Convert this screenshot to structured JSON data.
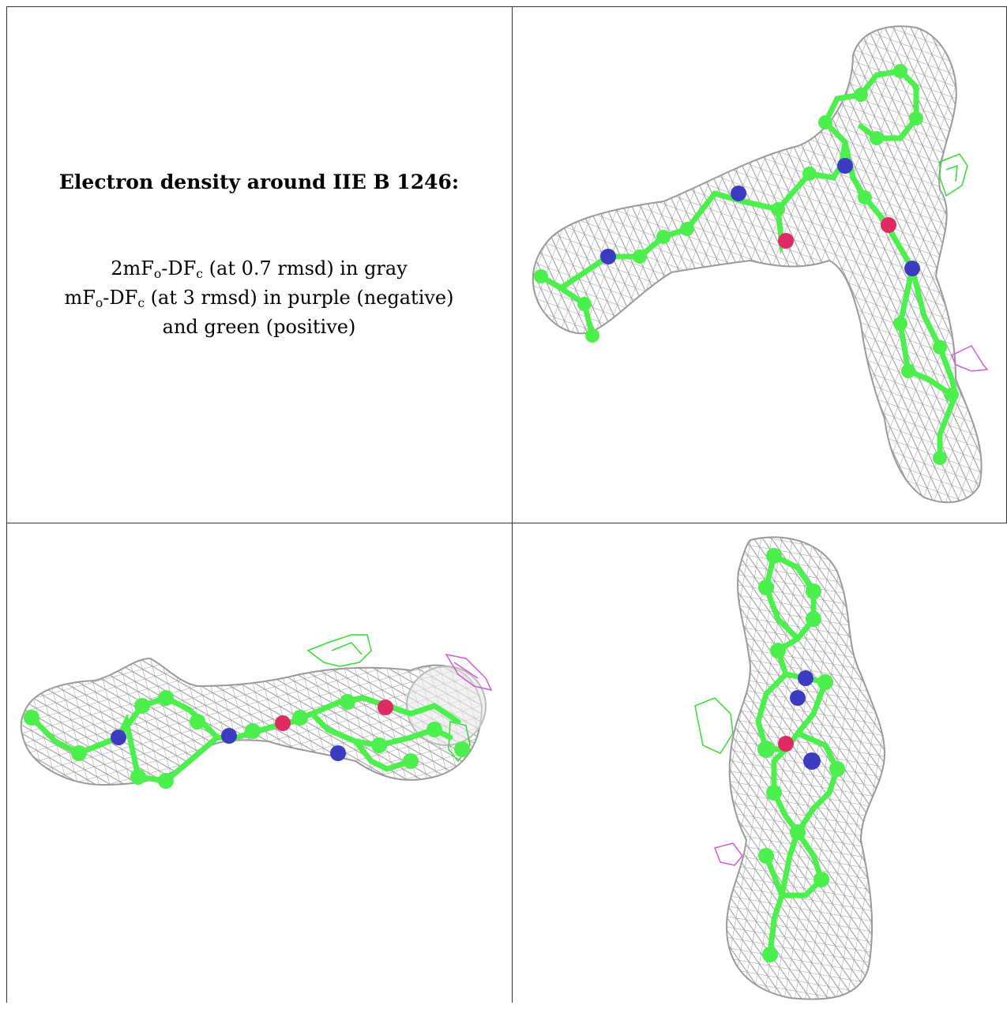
{
  "caption": {
    "title": "Electron density around IIE B 1246:",
    "line1": {
      "prefix": "2mF",
      "sub1": "o",
      "mid": "-DF",
      "sub2": "c",
      "suffix": " (at 0.7 rmsd) in gray"
    },
    "line2": {
      "prefix": "mF",
      "sub1": "o",
      "mid": "-DF",
      "sub2": "c",
      "suffix": " (at 3 rmsd) in purple (negative)"
    },
    "line3": "and green (positive)"
  },
  "colors": {
    "mesh_2fofc": "#9a9a9a",
    "diff_negative": "#d65ad6",
    "diff_positive": "#33dd33",
    "carbon": "#4cf04c",
    "nitrogen": "#3c3cc0",
    "oxygen": "#e02a62"
  }
}
